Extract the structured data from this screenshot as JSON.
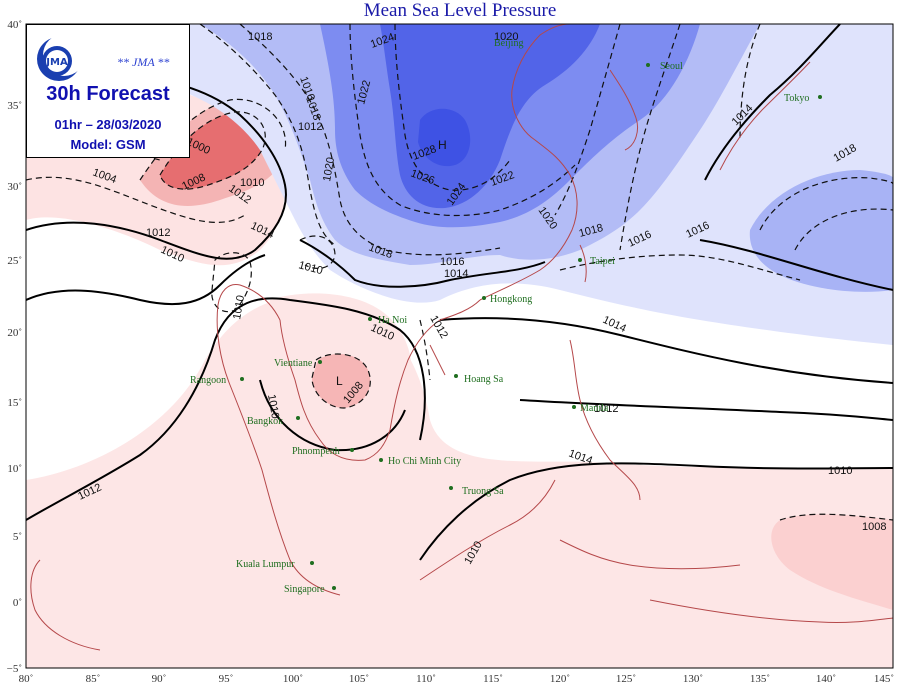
{
  "title": "Mean Sea Level Pressure",
  "info_box": {
    "agency": "** JMA **",
    "forecast": "30h Forecast",
    "datetime": "01hr – 28/03/2020",
    "model": "Model: GSM"
  },
  "axes": {
    "x_ticks": [
      "80˚",
      "85˚",
      "90˚",
      "95˚",
      "100˚",
      "105˚",
      "110˚",
      "115˚",
      "120˚",
      "125˚",
      "130˚",
      "135˚",
      "140˚",
      "145˚"
    ],
    "y_ticks": [
      "40˚",
      "35˚",
      "30˚",
      "25˚",
      "20˚",
      "15˚",
      "10˚",
      "5˚",
      "0˚",
      "−5˚"
    ]
  },
  "pressure_centers": {
    "high": "H",
    "low": "L"
  },
  "cities": {
    "beijing": "Beijing",
    "seoul": "Seoul",
    "tokyo": "Tokyo",
    "taipei": "Taipei",
    "hongkong": "Hongkong",
    "hanoi": "Ha Noi",
    "vientiane": "Vientiane",
    "rangoon": "Rangoon",
    "hoangsa": "Hoang Sa",
    "manila": "Manila",
    "bangkok": "Bangkok",
    "phnompenh": "Phnompenh",
    "hcmc": "Ho Chi Minh City",
    "truongsa": "Truong Sa",
    "kualalumpur": "Kuala Lumpur",
    "singapore": "Singapore"
  },
  "contour_labels": {
    "c1018a": "1018",
    "c1024a": "1024",
    "c1022": "1022",
    "c1016n": "1016",
    "c1018n": "1018",
    "c1012n": "1012",
    "c1028": "1028",
    "c1026": "1026",
    "c1020a": "1020",
    "c1010nw": "1010",
    "c1008": "1008",
    "c1012w": "1012",
    "c1014w": "1014",
    "c1004": "1004",
    "c1000": "1000",
    "c1020c": "1020",
    "c1018c": "1018",
    "c1016c": "1016",
    "c1014c": "1014",
    "c1024c": "1024",
    "c1022c": "1022",
    "c1020e": "1020",
    "c1018e": "1018",
    "c1016e": "1016",
    "c1016e2": "1016",
    "c1014e": "1014",
    "c1018ne": "1018",
    "c1014ne": "1014",
    "c1012wl": "1012",
    "c1010wl": "1010",
    "c1010m": "1010",
    "c1010i": "1010",
    "c1010v": "1010",
    "c1008l": "1008",
    "c1012h": "1012",
    "c1014p": "1014",
    "c1012p": "1012",
    "c1010p": "1010",
    "c1010se": "1010",
    "c1008se": "1008",
    "c1012sw": "1012",
    "c1010s": "1010"
  },
  "colors": {
    "high_deep": "#3a4fe0",
    "high_mid": "#7e8ff0",
    "high_light": "#c9d0fb",
    "low_light": "#fde3e3",
    "low_mid": "#f6b0b0",
    "low_deep": "#e8686a",
    "coastline": "#b5484a"
  }
}
